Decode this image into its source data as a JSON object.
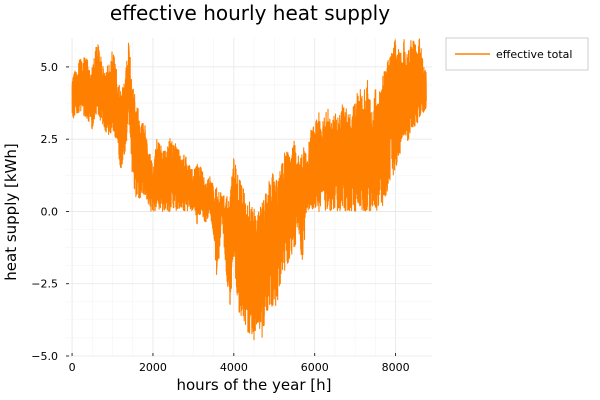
{
  "chart_data": {
    "type": "line",
    "title": "effective hourly heat supply",
    "xlabel": "hours of the year [h]",
    "ylabel": "heat supply [kWh]",
    "xlim": [
      -150,
      8900
    ],
    "ylim": [
      -5.0,
      6.0
    ],
    "x_ticks": [
      0,
      2000,
      4000,
      6000,
      8000
    ],
    "x_tick_labels": [
      "0",
      "2000",
      "4000",
      "6000",
      "8000"
    ],
    "y_ticks": [
      -5.0,
      -2.5,
      0.0,
      2.5,
      5.0
    ],
    "y_tick_labels": [
      "−5.0",
      "−2.5",
      "0.0",
      "2.5",
      "5.0"
    ],
    "grid": true,
    "legend_position": "outer-top-right",
    "series": [
      {
        "name": "effective total",
        "color": "#ff8000",
        "x": [
          0,
          100,
          200,
          300,
          400,
          500,
          600,
          700,
          800,
          900,
          1000,
          1100,
          1200,
          1300,
          1400,
          1500,
          1600,
          1700,
          1800,
          1900,
          2000,
          2100,
          2200,
          2300,
          2400,
          2500,
          2600,
          2700,
          2800,
          2900,
          3000,
          3100,
          3200,
          3300,
          3400,
          3500,
          3600,
          3700,
          3800,
          3900,
          4000,
          4100,
          4200,
          4300,
          4400,
          4500,
          4600,
          4700,
          4800,
          4900,
          5000,
          5100,
          5200,
          5300,
          5400,
          5500,
          5600,
          5700,
          5800,
          5900,
          6000,
          6100,
          6200,
          6300,
          6400,
          6500,
          6600,
          6700,
          6800,
          6900,
          7000,
          7100,
          7200,
          7300,
          7400,
          7500,
          7600,
          7700,
          7800,
          7900,
          8000,
          8100,
          8200,
          8300,
          8400,
          8500,
          8600,
          8700,
          8760
        ],
        "upper": [
          4.6,
          5.1,
          5.3,
          5.4,
          5.2,
          5.0,
          6.0,
          5.5,
          4.8,
          5.2,
          5.6,
          5.0,
          4.2,
          4.5,
          6.0,
          4.4,
          3.9,
          3.2,
          3.0,
          2.3,
          1.5,
          2.6,
          2.4,
          2.1,
          2.6,
          2.4,
          2.3,
          2.0,
          2.0,
          1.6,
          1.4,
          1.7,
          1.5,
          1.0,
          1.3,
          0.9,
          0.8,
          0.6,
          0.6,
          0.4,
          2.0,
          1.3,
          0.9,
          0.6,
          0.3,
          0.1,
          0.0,
          0.3,
          0.9,
          1.3,
          1.5,
          1.2,
          1.8,
          2.3,
          2.1,
          2.5,
          1.9,
          2.3,
          2.0,
          2.8,
          3.0,
          3.6,
          3.3,
          3.9,
          3.0,
          3.4,
          3.3,
          3.9,
          3.5,
          3.3,
          3.9,
          4.3,
          4.1,
          4.6,
          3.5,
          4.3,
          4.2,
          4.9,
          5.2,
          5.5,
          6.0,
          5.5,
          6.0,
          5.6,
          6.0,
          5.8,
          6.0,
          5.0,
          4.8
        ],
        "lower": [
          3.2,
          3.3,
          3.5,
          3.3,
          3.1,
          2.8,
          3.3,
          3.1,
          2.8,
          2.6,
          2.7,
          2.4,
          1.4,
          1.9,
          3.0,
          1.0,
          0.2,
          0.5,
          0.6,
          0.0,
          0.0,
          0.0,
          0.0,
          0.0,
          0.0,
          0.0,
          0.0,
          0.0,
          0.0,
          0.0,
          0.0,
          -0.6,
          0.0,
          -0.5,
          0.0,
          -1.1,
          -2.6,
          0.0,
          -2.1,
          -3.3,
          -1.6,
          -3.4,
          -3.7,
          -4.2,
          -4.4,
          -4.7,
          -3.9,
          -4.4,
          -3.6,
          -3.2,
          -3.4,
          -3.1,
          -2.4,
          -1.9,
          -1.6,
          -1.3,
          -0.6,
          -2.0,
          0.0,
          0.0,
          0.0,
          0.0,
          0.0,
          0.0,
          0.0,
          0.0,
          0.0,
          0.0,
          0.0,
          0.0,
          0.0,
          0.0,
          0.0,
          0.0,
          0.0,
          0.0,
          0.0,
          0.0,
          0.7,
          1.1,
          1.5,
          1.9,
          2.6,
          2.4,
          2.9,
          2.8,
          3.3,
          3.4,
          3.6
        ]
      }
    ]
  }
}
